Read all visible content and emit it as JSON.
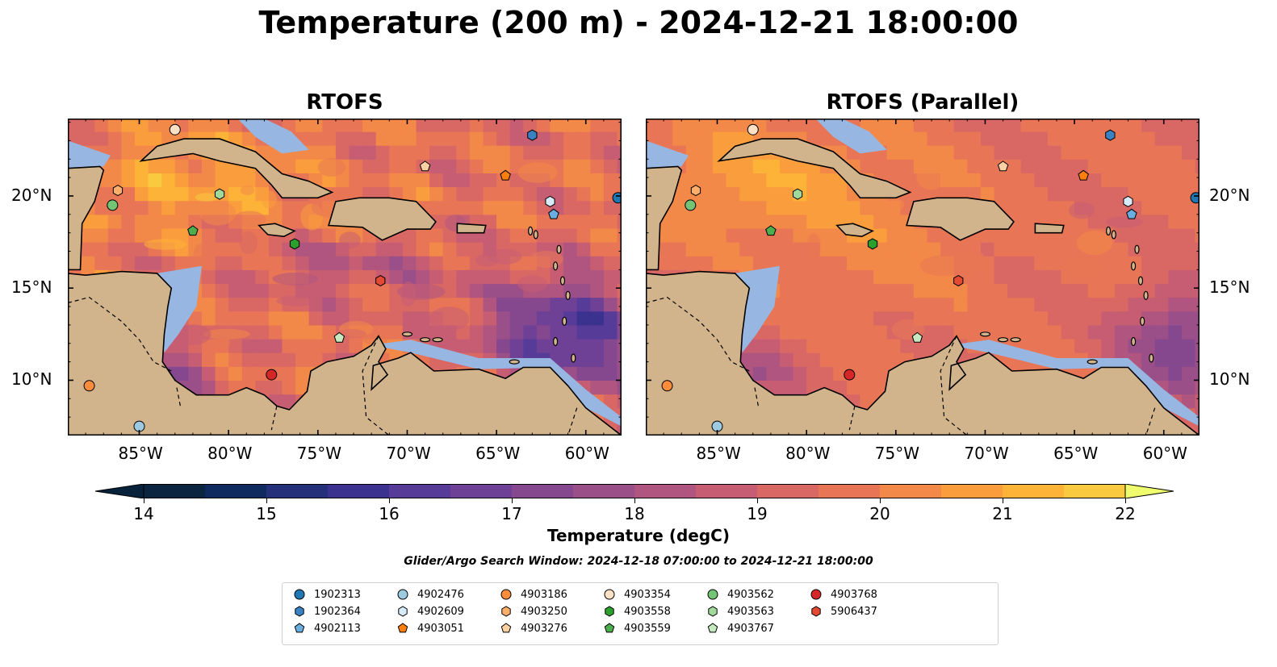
{
  "title": "Temperature (200 m) - 2024-12-21 18:00:00",
  "panels": [
    {
      "title": "RTOFS"
    },
    {
      "title": "RTOFS (Parallel)"
    }
  ],
  "axes": {
    "lon_labels": [
      "85°W",
      "80°W",
      "75°W",
      "70°W",
      "65°W",
      "60°W"
    ],
    "lon_values": [
      -85,
      -80,
      -75,
      -70,
      -65,
      -60
    ],
    "lat_labels": [
      "20°N",
      "15°N",
      "10°N"
    ],
    "lat_values": [
      20,
      15,
      10
    ],
    "lon_range": [
      -89,
      -58
    ],
    "lat_range": [
      7,
      24.2
    ]
  },
  "colorbar": {
    "label": "Temperature (degC)",
    "tick_labels": [
      "14",
      "15",
      "16",
      "17",
      "18",
      "19",
      "20",
      "21",
      "22"
    ],
    "range": [
      14,
      22
    ],
    "step": 0.5,
    "extend": "both",
    "colors": [
      "#0b2440",
      "#0f2a5e",
      "#24307a",
      "#3b318e",
      "#563b98",
      "#6e4096",
      "#85488f",
      "#9b4f88",
      "#b0557f",
      "#c65d73",
      "#d96865",
      "#e87656",
      "#f38948",
      "#fa9d3d",
      "#fdb338",
      "#f9c93f",
      "#f3e359"
    ],
    "under_color": "#07223a",
    "over_color": "#eefc6e"
  },
  "map_colors": {
    "land": "#d2b48c",
    "shelf": "#97b6e1",
    "coast": "#000000",
    "deep": "#0b2440"
  },
  "search_window": "Glider/Argo Search Window: 2024-12-18 07:00:00 to 2024-12-21 18:00:00",
  "floats": [
    {
      "id": "1902313",
      "marker": "circle",
      "color": "#1f77b4",
      "lon": -58.2,
      "lat": 19.9
    },
    {
      "id": "1902364",
      "marker": "hexagon",
      "color": "#3b82c4",
      "lon": -63.0,
      "lat": 23.3
    },
    {
      "id": "4902113",
      "marker": "pentagon",
      "color": "#6aaee0",
      "lon": -61.8,
      "lat": 19.0
    },
    {
      "id": "4902476",
      "marker": "circle",
      "color": "#9ecae1",
      "lon": -85.0,
      "lat": 7.5
    },
    {
      "id": "4902609",
      "marker": "hexagon",
      "color": "#d6eaf8",
      "lon": -62.0,
      "lat": 19.7
    },
    {
      "id": "4903051",
      "marker": "pentagon",
      "color": "#ff7f0e",
      "lon": -64.5,
      "lat": 21.1
    },
    {
      "id": "4903186",
      "marker": "circle",
      "color": "#fd8d3c",
      "lon": -87.8,
      "lat": 9.7
    },
    {
      "id": "4903250",
      "marker": "hexagon",
      "color": "#fdae6b",
      "lon": -86.2,
      "lat": 20.3
    },
    {
      "id": "4903276",
      "marker": "pentagon",
      "color": "#fdd0a2",
      "lon": -69.0,
      "lat": 21.6
    },
    {
      "id": "4903354",
      "marker": "circle",
      "color": "#fde0c5",
      "lon": -83.0,
      "lat": 23.6
    },
    {
      "id": "4903558",
      "marker": "hexagon",
      "color": "#2ca02c",
      "lon": -76.3,
      "lat": 17.4
    },
    {
      "id": "4903559",
      "marker": "pentagon",
      "color": "#4cae4c",
      "lon": -82.0,
      "lat": 18.1
    },
    {
      "id": "4903562",
      "marker": "circle",
      "color": "#74c476",
      "lon": -86.5,
      "lat": 19.5
    },
    {
      "id": "4903563",
      "marker": "hexagon",
      "color": "#a1d99b",
      "lon": -80.5,
      "lat": 20.1
    },
    {
      "id": "4903767",
      "marker": "pentagon",
      "color": "#c7e9c0",
      "lon": -73.8,
      "lat": 12.3
    },
    {
      "id": "4903768",
      "marker": "circle",
      "color": "#d62728",
      "lon": -77.6,
      "lat": 10.3
    },
    {
      "id": "5906437",
      "marker": "hexagon",
      "color": "#e34a33",
      "lon": -71.5,
      "lat": 15.4
    }
  ]
}
